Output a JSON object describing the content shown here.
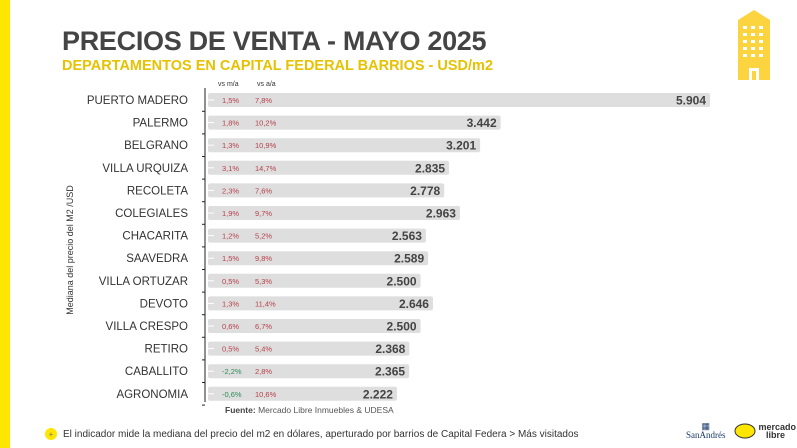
{
  "header": {
    "title": "PRECIOS DE VENTA -  MAYO 2025",
    "subtitle": "DEPARTAMENTOS EN CAPITAL FEDERAL BARRIOS - USD/m2"
  },
  "chart_data": {
    "type": "bar",
    "orientation": "horizontal",
    "ylabel": "Mediana del precio del M2 /USD",
    "column_headers": [
      "vs m/a",
      "vs a/a"
    ],
    "categories": [
      "PUERTO MADERO",
      "PALERMO",
      "BELGRANO",
      "VILLA URQUIZA",
      "RECOLETA",
      "COLEGIALES",
      "CHACARITA",
      "SAAVEDRA",
      "VILLA ORTUZAR",
      "DEVOTO",
      "VILLA CRESPO",
      "RETIRO",
      "CABALLITO",
      "AGRONOMIA"
    ],
    "values": [
      5904,
      3442,
      3201,
      2835,
      2778,
      2963,
      2563,
      2589,
      2500,
      2646,
      2500,
      2368,
      2365,
      2222
    ],
    "value_labels": [
      "5.904",
      "3.442",
      "3.201",
      "2.835",
      "2.778",
      "2.963",
      "2.563",
      "2.589",
      "2.500",
      "2.646",
      "2.500",
      "2.368",
      "2.365",
      "2.222"
    ],
    "vs_ma": [
      "1,5%",
      "1,8%",
      "1,3%",
      "3,1%",
      "2,3%",
      "1,9%",
      "1,2%",
      "1,5%",
      "0,5%",
      "1,3%",
      "0,6%",
      "0,5%",
      "-2,2%",
      "-0,6%"
    ],
    "vs_aa": [
      "7,8%",
      "10,2%",
      "10,9%",
      "14,7%",
      "7,6%",
      "9,7%",
      "5,2%",
      "9,8%",
      "5,3%",
      "11,4%",
      "6,7%",
      "5,4%",
      "2,8%",
      "10,6%"
    ],
    "colors": {
      "bar": "#dedede",
      "positive": "#b5404a",
      "negative": "#2e8b57",
      "value": "#444444"
    }
  },
  "footer": {
    "source_label": "Fuente:",
    "source": " Mercado Libre Inmuebles & UDESA",
    "note": "El indicador mide la mediana del precio del m2 en dólares, aperturado por barrios de Capital Federa > Más visitados",
    "logo_udesa": "SanAndrés",
    "logo_ml": "mercado libre"
  }
}
